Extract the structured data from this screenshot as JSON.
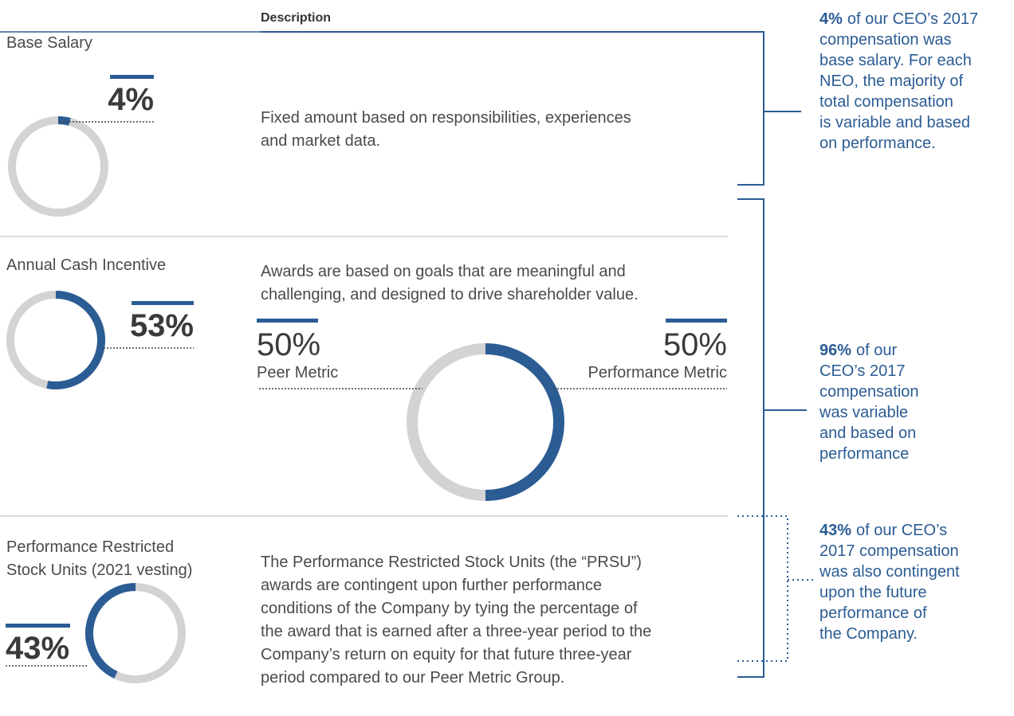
{
  "header": {
    "description_heading": "Description"
  },
  "rows": [
    {
      "label_lines": [
        "Base Salary"
      ],
      "percent": 4,
      "percent_label": "4%",
      "description_lines": [
        "Fixed amount based on responsibilities, experiences",
        "and market data."
      ]
    },
    {
      "label_lines": [
        "Annual Cash Incentive"
      ],
      "percent": 53,
      "percent_label": "53%",
      "description_lines": [
        "Awards are based on goals that are meaningful and",
        "challenging, and designed to drive shareholder value."
      ],
      "metrics": [
        {
          "label": "Peer Metric",
          "percent": 50,
          "percent_label": "50%"
        },
        {
          "label": "Performance Metric",
          "percent": 50,
          "percent_label": "50%"
        }
      ]
    },
    {
      "label_lines": [
        "Performance Restricted",
        "Stock Units (2021 vesting)"
      ],
      "percent": 43,
      "percent_label": "43%",
      "description_lines": [
        "The Performance Restricted Stock Units (the “PRSU”)",
        "awards are contingent upon further performance",
        "conditions of the Company by tying the percentage of",
        "the award that is earned after a three-year period to the",
        "Company’s return on equity for that future three-year",
        "period compared to our Peer Metric Group."
      ]
    }
  ],
  "notes": [
    {
      "highlight": "4%",
      "lines": [
        "of our CEO’s 2017",
        "compensation was",
        "base salary. For each",
        "NEO, the majority of",
        "total compensation",
        "is variable and based",
        "on performance."
      ]
    },
    {
      "highlight": "96%",
      "lines": [
        "of our",
        "CEO’s 2017",
        "compensation",
        "was variable",
        "and based on",
        "performance"
      ]
    },
    {
      "highlight": "43%",
      "lines": [
        "of our CEO’s",
        "2017 compensation",
        "was also contingent",
        "upon the future",
        "performance of",
        "the Company."
      ]
    }
  ]
}
